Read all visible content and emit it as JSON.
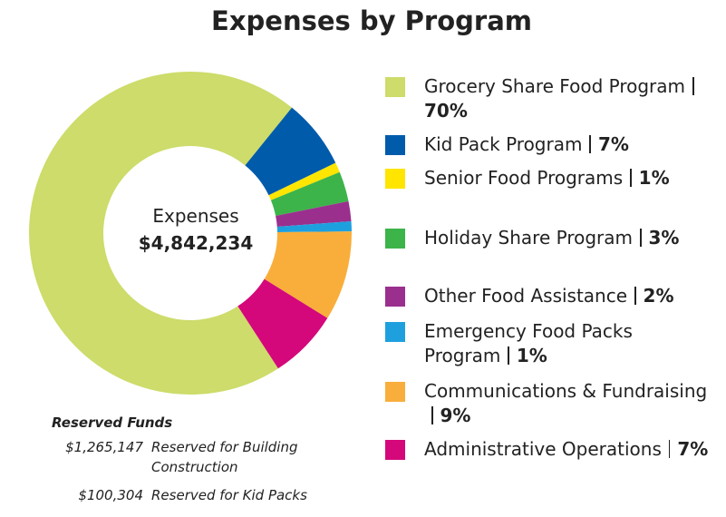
{
  "chart_data": {
    "type": "donut",
    "title": "Expenses by Program",
    "center_label": "Expenses",
    "center_value": "$4,842,234",
    "categories": [
      "Grocery Share Food Program",
      "Kid Pack Program",
      "Senior Food Programs",
      "Holiday Share Program",
      "Other Food Assistance",
      "Emergency Food Packs Program",
      "Communications & Fundraising",
      "Administrative Operations"
    ],
    "values": [
      70,
      7,
      1,
      3,
      2,
      1,
      9,
      7
    ],
    "value_labels": [
      "70%",
      "7%",
      "1%",
      "3%",
      "2%",
      "1%",
      "9%",
      "7%"
    ],
    "colors": [
      "#cddc6a",
      "#005bab",
      "#ffe500",
      "#3cb44a",
      "#9b2f8e",
      "#1ea0df",
      "#f9ae3b",
      "#d4087a"
    ],
    "legend": "right"
  },
  "reserved_funds": {
    "title": "Reserved Funds",
    "items": [
      {
        "amount": "$1,265,147",
        "label": "Reserved for Building Construction"
      },
      {
        "amount": "$100,304",
        "label": "Reserved for Kid Packs"
      }
    ]
  }
}
